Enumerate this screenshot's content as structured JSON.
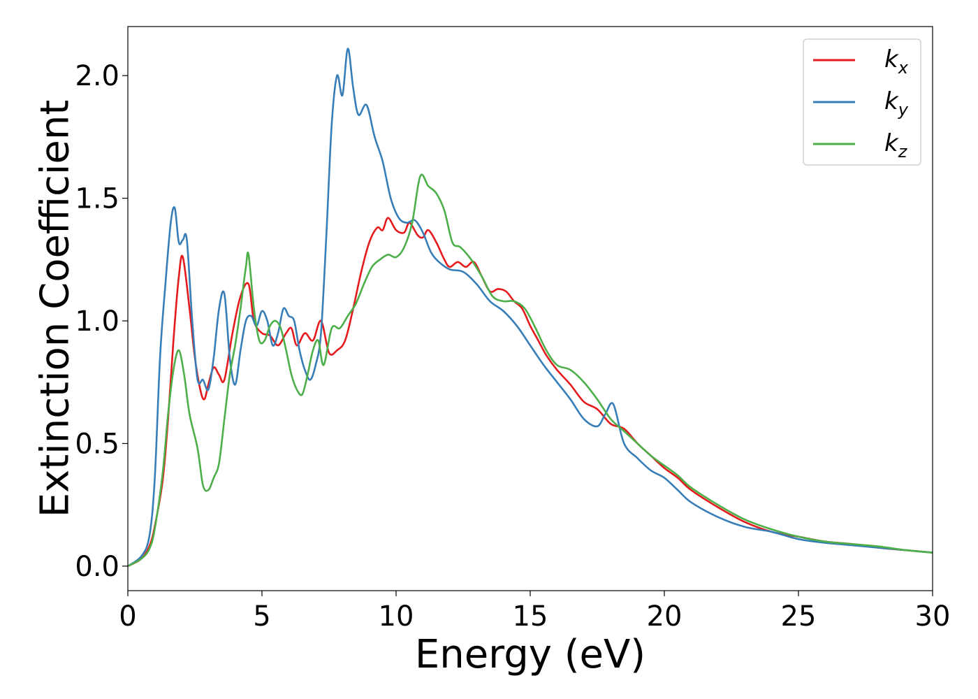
{
  "chart_data": {
    "type": "line",
    "xlabel": "Energy (eV)",
    "ylabel": "Extinction Coefficient",
    "xlim": [
      0,
      30
    ],
    "ylim": [
      -0.1,
      2.2
    ],
    "xticks": [
      0,
      5,
      10,
      15,
      20,
      25,
      30
    ],
    "xtick_labels": [
      "0",
      "5",
      "10",
      "15",
      "20",
      "25",
      "30"
    ],
    "yticks": [
      0.0,
      0.5,
      1.0,
      1.5,
      2.0
    ],
    "ytick_labels": [
      "0.0",
      "0.5",
      "1.0",
      "1.5",
      "2.0"
    ],
    "grid": false,
    "legend_position": "top-right",
    "series": [
      {
        "name": "k",
        "sub": "x",
        "color": "#e41a1c",
        "x": [
          0,
          0.5,
          0.8,
          1.0,
          1.3,
          1.5,
          1.7,
          1.9,
          2.05,
          2.3,
          2.5,
          2.7,
          2.85,
          3.0,
          3.2,
          3.4,
          3.6,
          3.9,
          4.2,
          4.5,
          4.7,
          5.0,
          5.3,
          5.6,
          5.9,
          6.1,
          6.3,
          6.6,
          6.9,
          7.2,
          7.5,
          7.8,
          8.1,
          8.4,
          8.7,
          9.0,
          9.3,
          9.5,
          9.7,
          10.0,
          10.3,
          10.5,
          10.8,
          11.0,
          11.2,
          11.5,
          11.8,
          12.0,
          12.3,
          12.6,
          12.9,
          13.2,
          13.5,
          13.8,
          14.1,
          14.4,
          14.7,
          15.0,
          15.3,
          15.6,
          16.0,
          16.5,
          17.0,
          17.5,
          18.0,
          18.5,
          19.0,
          19.5,
          20.0,
          20.5,
          21.0,
          22.0,
          23.0,
          24.0,
          25.0,
          26.0,
          27.0,
          28.0,
          29.0,
          30.0
        ],
        "y": [
          0.0,
          0.03,
          0.08,
          0.16,
          0.35,
          0.6,
          0.92,
          1.18,
          1.26,
          1.05,
          0.85,
          0.72,
          0.68,
          0.74,
          0.81,
          0.78,
          0.76,
          0.95,
          1.1,
          1.15,
          1.0,
          0.95,
          0.94,
          0.9,
          0.95,
          0.97,
          0.9,
          0.95,
          0.92,
          1.0,
          0.87,
          0.88,
          0.92,
          1.05,
          1.2,
          1.32,
          1.38,
          1.37,
          1.42,
          1.37,
          1.36,
          1.4,
          1.35,
          1.34,
          1.37,
          1.32,
          1.25,
          1.22,
          1.24,
          1.22,
          1.24,
          1.18,
          1.12,
          1.13,
          1.12,
          1.08,
          1.05,
          0.98,
          0.92,
          0.86,
          0.8,
          0.74,
          0.67,
          0.64,
          0.58,
          0.56,
          0.5,
          0.45,
          0.4,
          0.36,
          0.31,
          0.24,
          0.18,
          0.14,
          0.12,
          0.1,
          0.09,
          0.075,
          0.065,
          0.055
        ]
      },
      {
        "name": "k",
        "sub": "y",
        "color": "#377eb8",
        "x": [
          0,
          0.5,
          0.8,
          1.0,
          1.2,
          1.4,
          1.6,
          1.75,
          1.9,
          2.05,
          2.2,
          2.4,
          2.6,
          2.8,
          3.0,
          3.2,
          3.4,
          3.6,
          3.8,
          4.0,
          4.2,
          4.4,
          4.6,
          4.8,
          5.0,
          5.2,
          5.4,
          5.6,
          5.8,
          6.0,
          6.2,
          6.4,
          6.6,
          6.8,
          7.0,
          7.2,
          7.4,
          7.6,
          7.8,
          8.0,
          8.2,
          8.4,
          8.6,
          8.9,
          9.2,
          9.5,
          9.8,
          10.1,
          10.4,
          10.7,
          11.0,
          11.3,
          11.6,
          12.0,
          12.5,
          13.0,
          13.5,
          14.0,
          14.5,
          15.0,
          15.5,
          16.0,
          16.5,
          17.0,
          17.5,
          17.8,
          18.1,
          18.5,
          19.0,
          19.5,
          20.0,
          20.5,
          21.0,
          22.0,
          23.0,
          24.0,
          25.0,
          26.0,
          27.0,
          28.0,
          29.0,
          30.0
        ],
        "y": [
          0.0,
          0.04,
          0.12,
          0.35,
          0.85,
          1.15,
          1.4,
          1.46,
          1.32,
          1.33,
          1.33,
          1.0,
          0.76,
          0.76,
          0.72,
          0.85,
          1.05,
          1.11,
          0.85,
          0.74,
          0.88,
          1.0,
          1.02,
          0.98,
          1.04,
          1.0,
          0.9,
          0.95,
          1.05,
          1.02,
          1.0,
          0.88,
          0.8,
          0.76,
          0.82,
          0.95,
          1.35,
          1.8,
          2.0,
          1.92,
          2.11,
          1.95,
          1.84,
          1.88,
          1.75,
          1.65,
          1.5,
          1.42,
          1.4,
          1.41,
          1.36,
          1.28,
          1.24,
          1.21,
          1.2,
          1.15,
          1.08,
          1.04,
          0.98,
          0.9,
          0.82,
          0.75,
          0.68,
          0.6,
          0.57,
          0.62,
          0.66,
          0.5,
          0.44,
          0.39,
          0.36,
          0.31,
          0.26,
          0.2,
          0.16,
          0.14,
          0.11,
          0.095,
          0.085,
          0.075,
          0.065,
          0.055
        ]
      },
      {
        "name": "k",
        "sub": "z",
        "color": "#4daf4a",
        "x": [
          0,
          0.5,
          0.8,
          1.0,
          1.3,
          1.5,
          1.7,
          1.9,
          2.1,
          2.3,
          2.6,
          2.8,
          3.0,
          3.2,
          3.4,
          3.6,
          3.8,
          4.0,
          4.2,
          4.4,
          4.5,
          4.7,
          4.9,
          5.1,
          5.3,
          5.5,
          5.7,
          5.9,
          6.1,
          6.3,
          6.5,
          6.7,
          6.9,
          7.1,
          7.3,
          7.6,
          7.9,
          8.2,
          8.5,
          8.8,
          9.1,
          9.4,
          9.7,
          10.0,
          10.3,
          10.6,
          10.9,
          11.2,
          11.5,
          11.8,
          12.1,
          12.4,
          12.8,
          13.2,
          13.6,
          14.0,
          14.4,
          14.8,
          15.2,
          15.6,
          16.0,
          16.5,
          17.0,
          17.5,
          18.0,
          18.5,
          19.0,
          19.5,
          20.0,
          20.5,
          21.0,
          22.0,
          23.0,
          24.0,
          25.0,
          26.0,
          27.0,
          28.0,
          29.0,
          30.0
        ],
        "y": [
          0.0,
          0.03,
          0.07,
          0.15,
          0.38,
          0.62,
          0.8,
          0.88,
          0.78,
          0.62,
          0.48,
          0.33,
          0.31,
          0.36,
          0.42,
          0.6,
          0.78,
          0.9,
          1.05,
          1.22,
          1.27,
          1.05,
          0.92,
          0.92,
          0.98,
          1.0,
          0.97,
          0.88,
          0.78,
          0.72,
          0.7,
          0.78,
          0.88,
          0.92,
          0.82,
          0.97,
          0.97,
          1.02,
          1.07,
          1.15,
          1.22,
          1.25,
          1.27,
          1.26,
          1.3,
          1.4,
          1.59,
          1.55,
          1.52,
          1.45,
          1.32,
          1.3,
          1.25,
          1.18,
          1.1,
          1.08,
          1.08,
          1.05,
          0.97,
          0.88,
          0.82,
          0.8,
          0.75,
          0.68,
          0.6,
          0.55,
          0.5,
          0.45,
          0.41,
          0.37,
          0.32,
          0.25,
          0.19,
          0.15,
          0.12,
          0.1,
          0.09,
          0.08,
          0.065,
          0.055
        ]
      }
    ]
  }
}
